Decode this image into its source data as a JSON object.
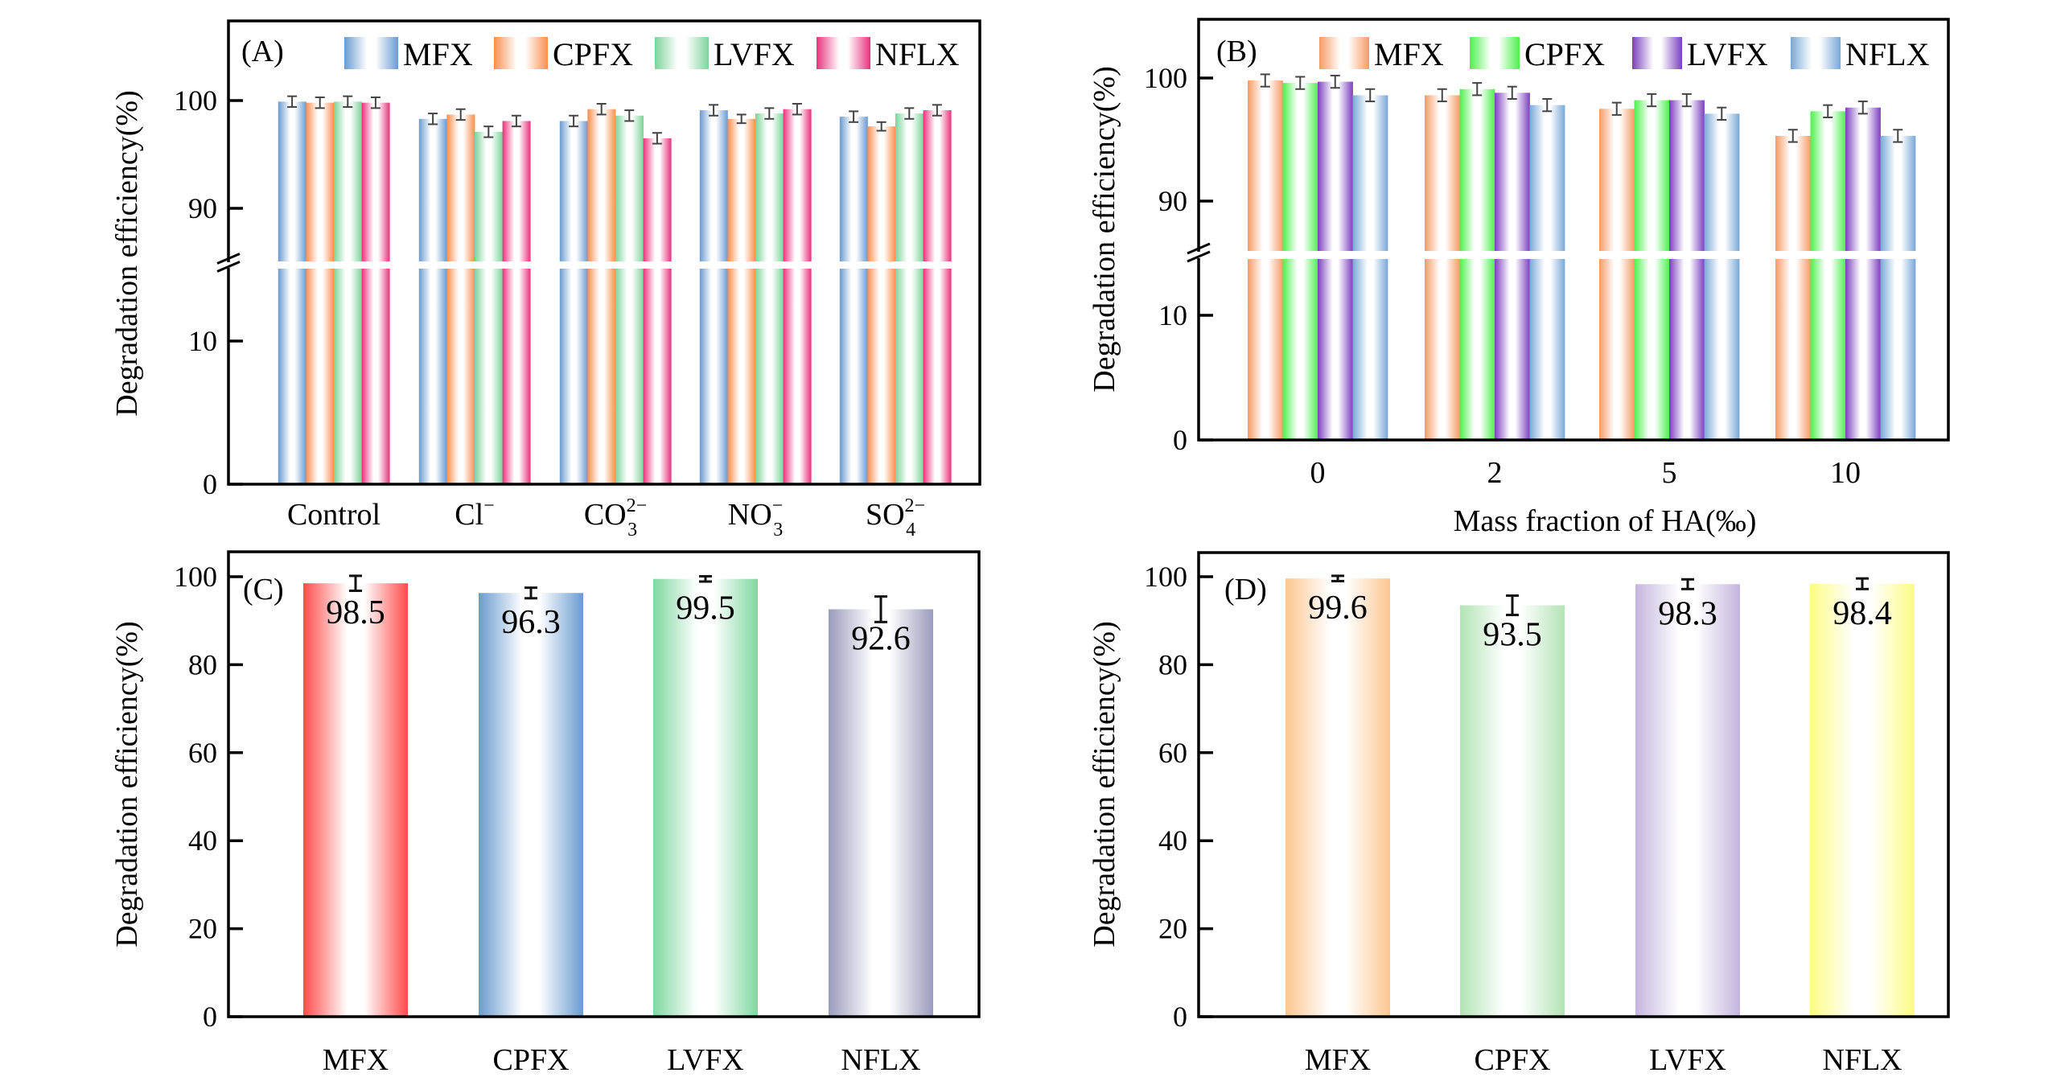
{
  "figure": {
    "y_axis_title": "Degradation efficiency(%)"
  },
  "chart_data": [
    {
      "panel": "A",
      "label": "(A)",
      "type": "bar",
      "ylabel": "Degradation efficiency(%)",
      "xlabel": "",
      "y_axis_break": true,
      "ylim_lower_segment": [
        0,
        15
      ],
      "ylim_upper_segment": [
        85,
        107.4
      ],
      "yticks": [
        0,
        10,
        90,
        100
      ],
      "legend_position": "top-right",
      "categories": [
        {
          "base": "Control",
          "sub": "",
          "sup": ""
        },
        {
          "base": "Cl",
          "sub": "",
          "sup": "−"
        },
        {
          "base": "CO",
          "sub": "3",
          "sup": "2−"
        },
        {
          "base": "NO",
          "sub": "3",
          "sup": "−"
        },
        {
          "base": "SO",
          "sub": "4",
          "sup": "2−"
        }
      ],
      "series": [
        {
          "name": "MFX",
          "color": "#6A9AD0",
          "values": [
            99.9,
            98.3,
            98.1,
            99.1,
            98.5
          ],
          "errors": [
            0.5,
            0.5,
            0.5,
            0.5,
            0.5
          ]
        },
        {
          "name": "CPFX",
          "color": "#F98E4F",
          "values": [
            99.8,
            98.7,
            99.2,
            98.3,
            97.6
          ],
          "errors": [
            0.5,
            0.5,
            0.5,
            0.4,
            0.4
          ]
        },
        {
          "name": "LVFX",
          "color": "#7DD39A",
          "values": [
            99.9,
            97.1,
            98.6,
            98.8,
            98.8
          ],
          "errors": [
            0.5,
            0.5,
            0.5,
            0.5,
            0.5
          ]
        },
        {
          "name": "NFLX",
          "color": "#E8327C",
          "values": [
            99.8,
            98.1,
            96.5,
            99.2,
            99.1
          ],
          "errors": [
            0.5,
            0.5,
            0.5,
            0.5,
            0.5
          ]
        }
      ]
    },
    {
      "panel": "B",
      "label": "(B)",
      "type": "bar",
      "ylabel": "Degradation efficiency(%)",
      "xlabel": "Mass fraction of HA(‰)",
      "y_axis_break": true,
      "ylim_lower_segment": [
        0,
        15
      ],
      "ylim_upper_segment": [
        86,
        104.8
      ],
      "yticks": [
        0,
        10,
        90,
        100
      ],
      "legend_position": "top-right",
      "categories": [
        {
          "base": "0",
          "sub": "",
          "sup": ""
        },
        {
          "base": "2",
          "sub": "",
          "sup": ""
        },
        {
          "base": "5",
          "sub": "",
          "sup": ""
        },
        {
          "base": "10",
          "sub": "",
          "sup": ""
        }
      ],
      "series": [
        {
          "name": "MFX",
          "color": "#F79A64",
          "values": [
            99.8,
            98.6,
            97.5,
            95.3
          ],
          "errors": [
            0.5,
            0.5,
            0.5,
            0.5
          ]
        },
        {
          "name": "CPFX",
          "color": "#4CF04C",
          "values": [
            99.6,
            99.1,
            98.2,
            97.3
          ],
          "errors": [
            0.5,
            0.5,
            0.5,
            0.5
          ]
        },
        {
          "name": "LVFX",
          "color": "#7B3FBF",
          "values": [
            99.7,
            98.8,
            98.2,
            97.6
          ],
          "errors": [
            0.5,
            0.5,
            0.5,
            0.5
          ]
        },
        {
          "name": "NFLX",
          "color": "#78A8D8",
          "values": [
            98.6,
            97.8,
            97.1,
            95.3
          ],
          "errors": [
            0.5,
            0.5,
            0.5,
            0.5
          ]
        }
      ]
    },
    {
      "panel": "C",
      "label": "(C)",
      "type": "bar",
      "ylabel": "Degradation efficiency(%)",
      "xlabel": "",
      "y_axis_break": false,
      "ylim": [
        0,
        105
      ],
      "yticks": [
        0,
        20,
        40,
        60,
        80,
        100
      ],
      "categories": [
        {
          "base": "MFX",
          "sub": "",
          "sup": ""
        },
        {
          "base": "CPFX",
          "sub": "",
          "sup": ""
        },
        {
          "base": "LVFX",
          "sub": "",
          "sup": ""
        },
        {
          "base": "NFLX",
          "sub": "",
          "sup": ""
        }
      ],
      "colors": [
        "#FF4A4A",
        "#6A9BCF",
        "#7ED8A0",
        "#9B9BBD"
      ],
      "values": [
        98.5,
        96.3,
        99.5,
        92.6
      ],
      "value_labels": [
        "98.5",
        "96.3",
        "99.5",
        "92.6"
      ],
      "errors": [
        1.7,
        1.2,
        0.6,
        2.9
      ]
    },
    {
      "panel": "D",
      "label": "(D)",
      "type": "bar",
      "ylabel": "Degradation efficiency(%)",
      "xlabel": "",
      "y_axis_break": false,
      "ylim": [
        0,
        105
      ],
      "yticks": [
        0,
        20,
        40,
        60,
        80,
        100
      ],
      "categories": [
        {
          "base": "MFX",
          "sub": "",
          "sup": ""
        },
        {
          "base": "CPFX",
          "sub": "",
          "sup": ""
        },
        {
          "base": "LVFX",
          "sub": "",
          "sup": ""
        },
        {
          "base": "NFLX",
          "sub": "",
          "sup": ""
        }
      ],
      "colors": [
        "#FCC690",
        "#B3E3B5",
        "#C5B5DE",
        "#FCFC85"
      ],
      "values": [
        99.6,
        93.5,
        98.3,
        98.4
      ],
      "value_labels": [
        "99.6",
        "93.5",
        "98.3",
        "98.4"
      ],
      "errors": [
        0.6,
        2.2,
        1.1,
        1.2
      ]
    }
  ]
}
